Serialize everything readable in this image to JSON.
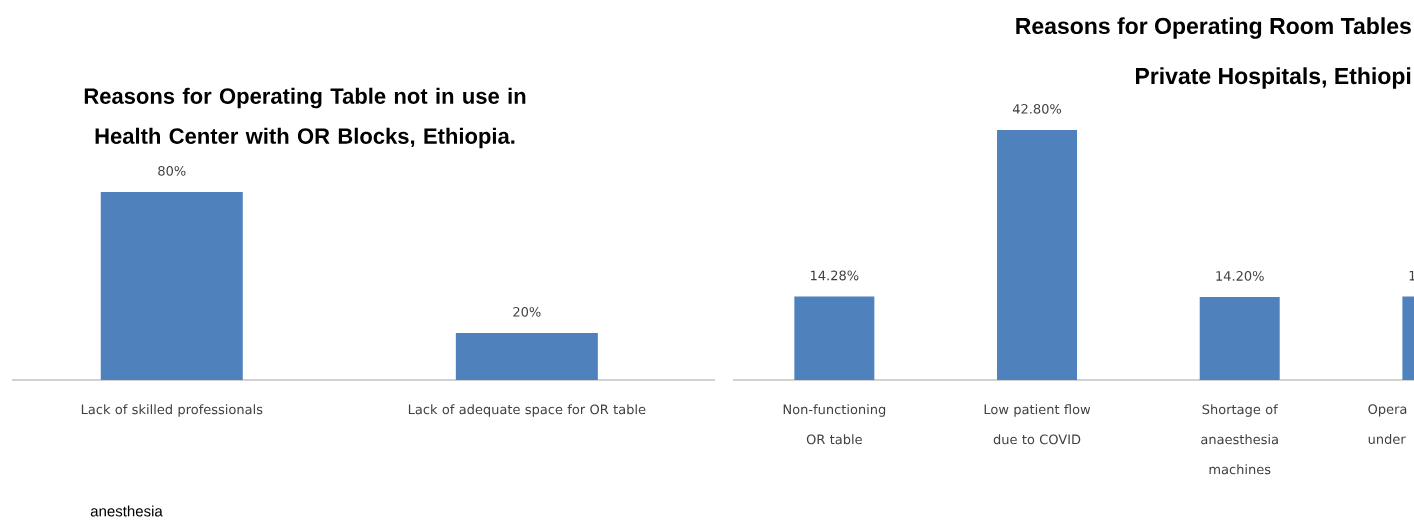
{
  "chart_data": [
    {
      "type": "bar",
      "title": "Reasons for Operating Table not in use in Health Center with OR Blocks, Ethiopia.",
      "categories": [
        "Lack of skilled professionals",
        "Lack of adequate space for OR table"
      ],
      "values": [
        80,
        20
      ],
      "value_labels": [
        "80%",
        "20%"
      ],
      "color": "#4f81bd",
      "annotations": [
        "anesthesia"
      ]
    },
    {
      "type": "bar",
      "title": "Reasons for Operating Room Tables",
      "subtitle": "Private Hospitals, Ethiopi",
      "categories": [
        "Non-functioning OR table",
        "Low patient flow due to COVID",
        "Shortage of anaesthesia machines",
        "Opera under"
      ],
      "values": [
        14.28,
        42.8,
        14.2,
        14.28
      ],
      "value_labels": [
        "14.28%",
        "42.80%",
        "14.20%",
        null
      ],
      "color": "#4f81bd",
      "annotations": [
        {
          "text": "1",
          "x": "Opera under",
          "y": 14.28
        }
      ]
    }
  ]
}
